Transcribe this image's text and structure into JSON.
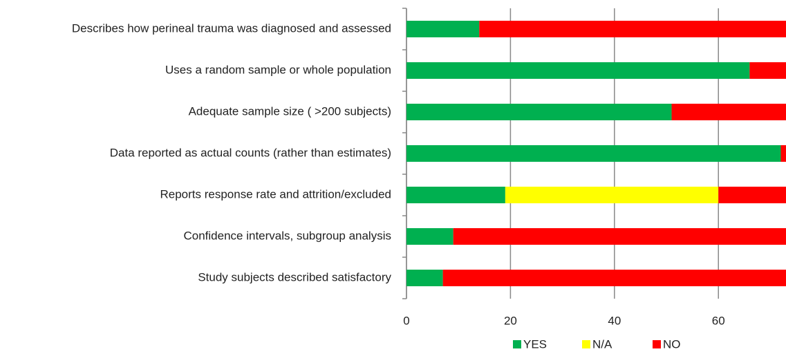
{
  "chart_data": {
    "type": "stacked-bar-horizontal",
    "categories": [
      "Describes how perineal trauma was diagnosed and assessed",
      "Uses a random sample or whole population",
      "Adequate sample size ( >200 subjects)",
      "Data reported as actual counts (rather than estimates)",
      "Reports response rate and attrition/excluded",
      "Confidence intervals, subgroup analysis",
      "Study subjects described satisfactory"
    ],
    "series": [
      {
        "name": "YES",
        "color": "#00b050",
        "values": [
          14,
          66,
          51,
          72,
          19,
          9,
          7
        ]
      },
      {
        "name": "N/A",
        "color": "#ffff00",
        "values": [
          0,
          0,
          0,
          0,
          41,
          0,
          0
        ]
      },
      {
        "name": "NO",
        "color": "#ff0000",
        "values": [
          59,
          7,
          22,
          1,
          13,
          64,
          66
        ]
      }
    ],
    "xlim": [
      0,
      73
    ],
    "xticks": [
      0,
      20,
      40,
      60
    ],
    "grid": true,
    "legend": "bottom"
  }
}
